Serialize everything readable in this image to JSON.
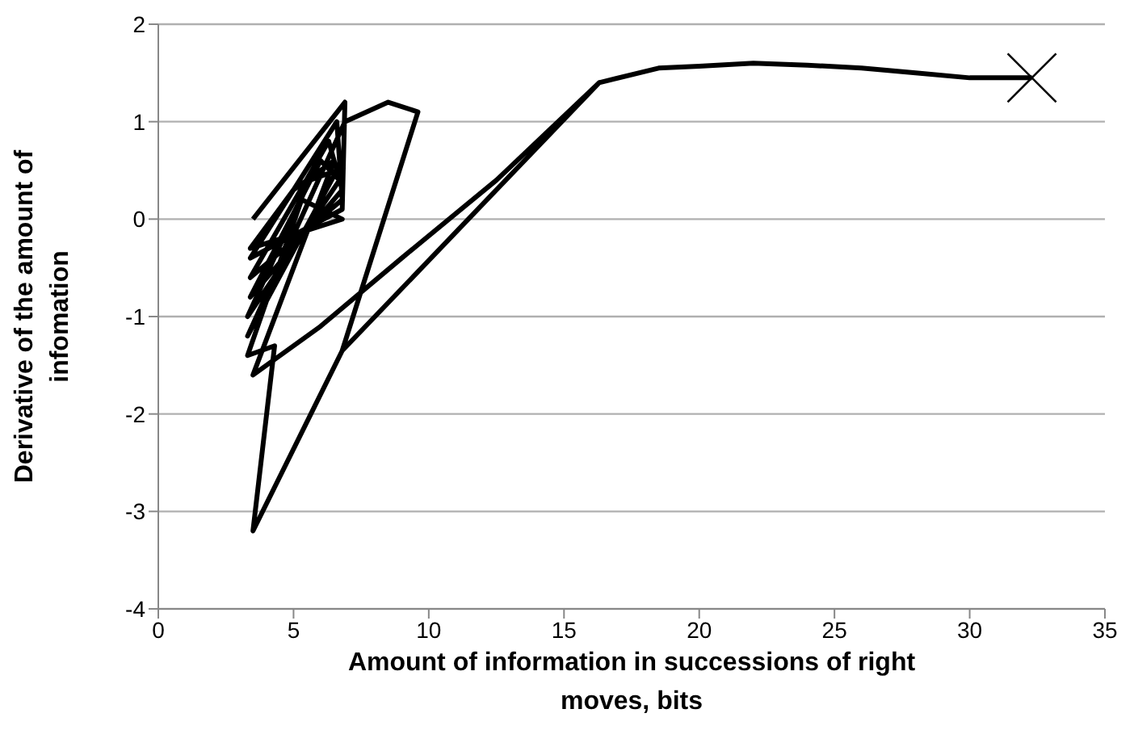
{
  "chart_data": {
    "type": "line",
    "xlabel": "Amount of information in successions of right moves, bits",
    "ylabel": "Derivative of the amount of infomation",
    "xlim": [
      0,
      35
    ],
    "xticks": [
      0,
      5,
      10,
      15,
      20,
      25,
      30,
      35
    ],
    "ylim": [
      -4,
      2
    ],
    "yticks": [
      -4,
      -3,
      -2,
      -1,
      0,
      1,
      2
    ],
    "grid": "y",
    "legend": false,
    "series": [
      {
        "color": "#000000",
        "marker": "none",
        "x": [
          3.5,
          6.9,
          6.8,
          3.4,
          6.6,
          6.8,
          3.4,
          6.3,
          6.8,
          3.4,
          6.0,
          6.7,
          3.3,
          5.6,
          6.6,
          3.3,
          6.9,
          8.5,
          9.6,
          6.8,
          3.5,
          4.3,
          3.3,
          5.3,
          6.8,
          3.4,
          5.0,
          6.5,
          3.5,
          6.0,
          9.0,
          12.5,
          16.3,
          6.8,
          16.3,
          18.5,
          20.0,
          22.0,
          24.0,
          26.0,
          28.0,
          30.0,
          32.3
        ],
        "values": [
          0.0,
          1.2,
          0.1,
          -0.4,
          1.0,
          0.2,
          -0.6,
          0.8,
          0.3,
          -0.8,
          0.6,
          0.4,
          -1.0,
          0.4,
          0.5,
          -1.2,
          1.0,
          1.2,
          1.1,
          -1.35,
          -3.2,
          -1.3,
          -1.4,
          0.2,
          0.0,
          -0.3,
          0.3,
          0.6,
          -1.6,
          -1.1,
          -0.4,
          0.4,
          1.4,
          -1.35,
          1.4,
          1.55,
          1.57,
          1.6,
          1.58,
          1.55,
          1.5,
          1.45,
          1.45
        ]
      },
      {
        "type": "scatter",
        "color": "#000000",
        "marker": "cross",
        "x": [
          32.3
        ],
        "values": [
          1.45
        ]
      }
    ]
  }
}
